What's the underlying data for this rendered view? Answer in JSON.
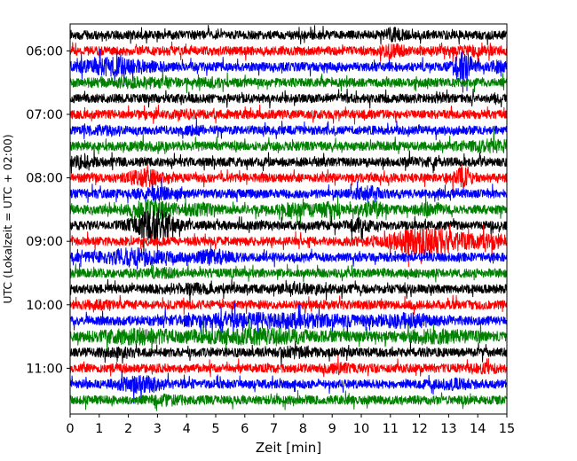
{
  "chart_data": {
    "type": "line",
    "title": "",
    "xlabel": "Zeit  [min]",
    "ylabel": "UTC (Lokalzeit = UTC + 02:00)",
    "xlim": [
      0,
      15
    ],
    "x_ticks": [
      0,
      1,
      2,
      3,
      4,
      5,
      6,
      7,
      8,
      9,
      10,
      11,
      12,
      13,
      14,
      15
    ],
    "x_tick_labels": [
      "0",
      "1",
      "2",
      "3",
      "4",
      "5",
      "6",
      "7",
      "8",
      "9",
      "10",
      "11",
      "12",
      "13",
      "14",
      "15"
    ],
    "y_tick_labels": [
      "06:00",
      "07:00",
      "08:00",
      "09:00",
      "10:00",
      "11:00"
    ],
    "trace_interval_min": 15,
    "color_cycle": [
      "#000000",
      "#ff0000",
      "#0000ff",
      "#008000"
    ],
    "series": [
      {
        "start": "05:45",
        "bursts": [
          [
            11.1,
            0.3,
            2.0
          ]
        ]
      },
      {
        "start": "06:00",
        "bursts": [
          [
            11.1,
            0.4,
            1.8
          ],
          [
            13.8,
            0.6,
            1.4
          ]
        ]
      },
      {
        "start": "06:15",
        "bursts": [
          [
            1.6,
            1.2,
            2.2
          ],
          [
            13.5,
            0.3,
            3.5
          ],
          [
            14.7,
            0.3,
            1.6
          ]
        ]
      },
      {
        "start": "06:30",
        "bursts": [
          [
            2.4,
            1.5,
            1.4
          ],
          [
            5.0,
            0.4,
            1.4
          ]
        ]
      },
      {
        "start": "06:45",
        "bursts": []
      },
      {
        "start": "07:00",
        "bursts": [
          [
            4.0,
            0.5,
            1.3
          ]
        ]
      },
      {
        "start": "07:15",
        "bursts": [
          [
            1.2,
            0.4,
            1.3
          ],
          [
            4.2,
            0.5,
            1.4
          ]
        ]
      },
      {
        "start": "07:30",
        "bursts": [
          [
            2.5,
            0.6,
            1.3
          ],
          [
            14.4,
            0.8,
            1.8
          ]
        ]
      },
      {
        "start": "07:45",
        "bursts": [
          [
            0.4,
            0.5,
            1.6
          ],
          [
            12.0,
            0.5,
            1.3
          ]
        ]
      },
      {
        "start": "08:00",
        "bursts": [
          [
            2.6,
            0.6,
            2.2
          ],
          [
            13.5,
            0.3,
            2.6
          ]
        ]
      },
      {
        "start": "08:15",
        "bursts": [
          [
            3.0,
            0.7,
            1.8
          ],
          [
            10.2,
            0.4,
            2.0
          ]
        ]
      },
      {
        "start": "08:30",
        "bursts": [
          [
            2.8,
            0.8,
            2.4
          ],
          [
            4.5,
            0.5,
            1.8
          ],
          [
            7.8,
            0.6,
            1.8
          ],
          [
            8.8,
            0.5,
            1.8
          ],
          [
            10.4,
            0.4,
            2.2
          ],
          [
            12.4,
            0.4,
            2.2
          ]
        ]
      },
      {
        "start": "08:45",
        "bursts": [
          [
            2.6,
            0.6,
            2.6
          ],
          [
            3.1,
            0.5,
            3.0
          ],
          [
            10.0,
            0.4,
            1.8
          ]
        ]
      },
      {
        "start": "09:00",
        "bursts": [
          [
            12.3,
            1.3,
            3.2
          ],
          [
            14.5,
            0.6,
            1.8
          ]
        ]
      },
      {
        "start": "09:15",
        "bursts": [
          [
            2.2,
            1.1,
            2.2
          ],
          [
            4.9,
            0.6,
            2.0
          ]
        ]
      },
      {
        "start": "09:30",
        "bursts": [
          [
            3.2,
            0.5,
            1.4
          ]
        ]
      },
      {
        "start": "09:45",
        "bursts": [
          [
            4.0,
            0.8,
            1.5
          ],
          [
            8.0,
            0.8,
            1.4
          ]
        ]
      },
      {
        "start": "10:00",
        "bursts": [
          [
            1.0,
            0.4,
            1.3
          ]
        ]
      },
      {
        "start": "10:15",
        "bursts": [
          [
            6.8,
            3.0,
            2.0
          ],
          [
            11.6,
            1.0,
            1.8
          ]
        ]
      },
      {
        "start": "10:30",
        "bursts": [
          [
            2.2,
            1.4,
            1.9
          ],
          [
            6.3,
            2.5,
            2.0
          ],
          [
            12.6,
            1.4,
            1.8
          ]
        ]
      },
      {
        "start": "10:45",
        "bursts": [
          [
            1.6,
            0.6,
            1.3
          ],
          [
            7.7,
            0.7,
            1.5
          ]
        ]
      },
      {
        "start": "11:00",
        "bursts": [
          [
            9.2,
            0.5,
            1.4
          ],
          [
            14.3,
            0.4,
            1.4
          ]
        ]
      },
      {
        "start": "11:15",
        "bursts": [
          [
            2.4,
            0.7,
            2.2
          ],
          [
            13.2,
            0.6,
            1.5
          ]
        ]
      },
      {
        "start": "11:30",
        "bursts": [
          [
            3.2,
            0.6,
            1.5
          ]
        ]
      }
    ]
  }
}
